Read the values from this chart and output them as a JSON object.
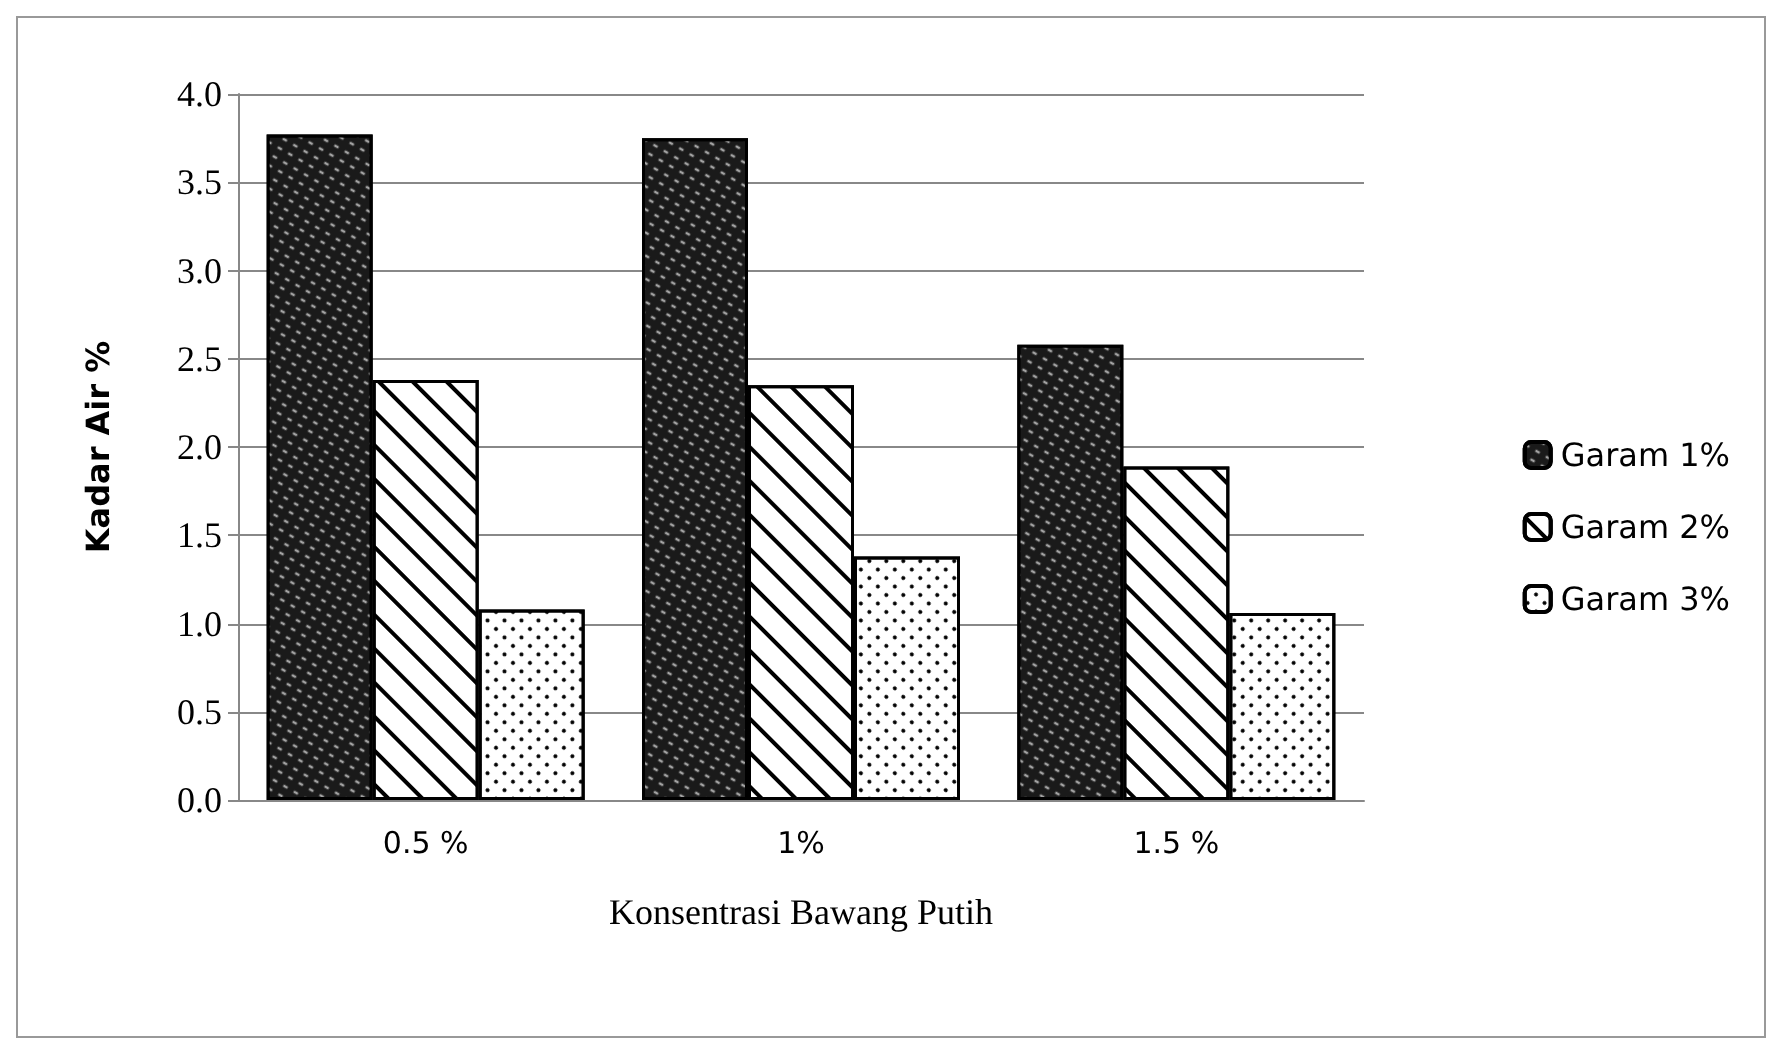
{
  "chart_data": {
    "type": "bar",
    "xlabel": "Konsentrasi Bawang Putih",
    "ylabel": "Kadar Air %",
    "categories": [
      "0.5 %",
      "1%",
      "1.5 %"
    ],
    "series": [
      {
        "name": "Garam 1%",
        "color": "#1a1a1a",
        "values": [
          3.77,
          3.75,
          2.58
        ]
      },
      {
        "name": "Garam 2%",
        "color": "#ffffff",
        "values": [
          2.38,
          2.35,
          1.89
        ]
      },
      {
        "name": "Garam 3%",
        "color": "#ffffff",
        "values": [
          1.08,
          1.38,
          1.06
        ]
      }
    ],
    "ylim": [
      0,
      4
    ],
    "yticks": [
      {
        "value": 0,
        "label": "0.0"
      },
      {
        "value": 0.5,
        "label": "0.5"
      },
      {
        "value": 1,
        "label": "1.0"
      },
      {
        "value": 1.5,
        "label": "1.5"
      },
      {
        "value": 2,
        "label": "2.0"
      },
      {
        "value": 2.5,
        "label": "2.5"
      },
      {
        "value": 3,
        "label": "3.0"
      },
      {
        "value": 3.5,
        "label": "3.5"
      },
      {
        "value": 4,
        "label": "4.0"
      }
    ],
    "grid": "y",
    "legend": "right"
  }
}
